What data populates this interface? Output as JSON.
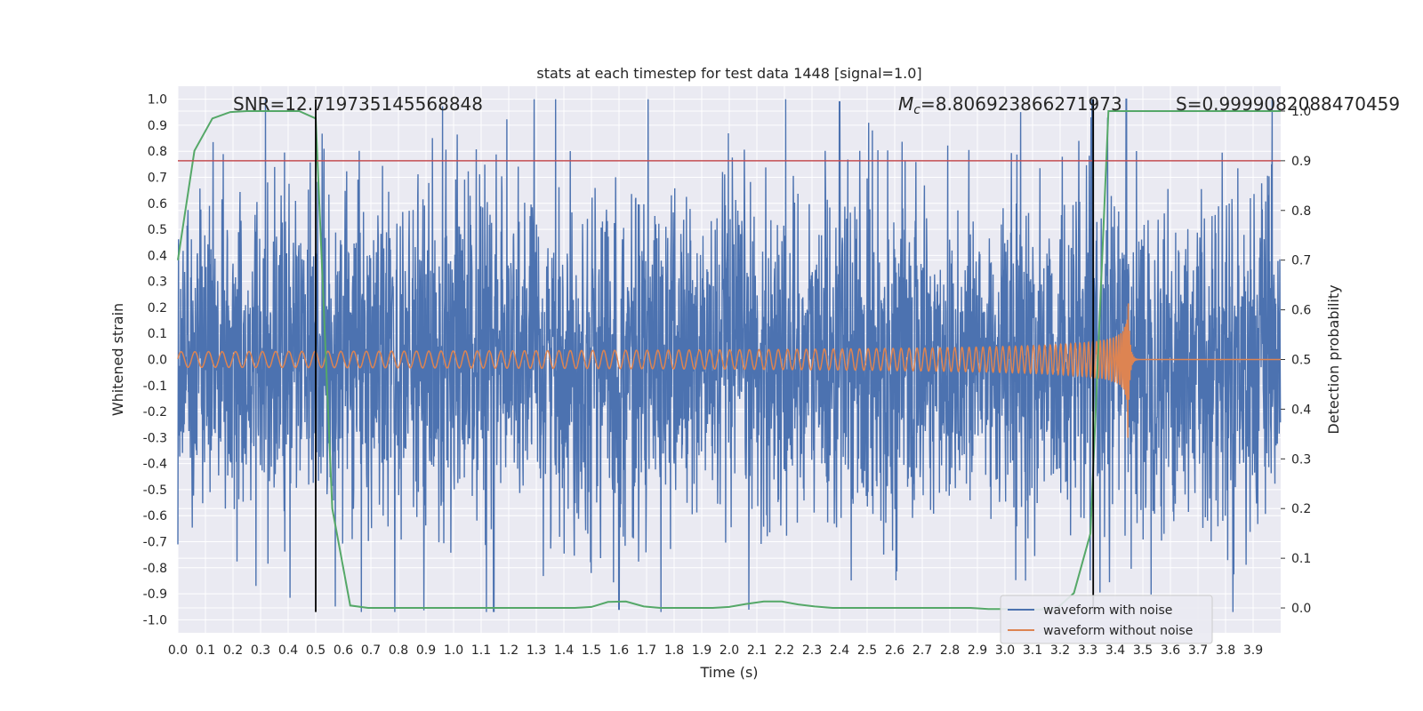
{
  "chart_data": {
    "type": "line",
    "title": "stats at each timestep for test data 1448 [signal=1.0]",
    "xlabel": "Time (s)",
    "ylabel_left": "Whitened strain",
    "ylabel_right": "Detection probability",
    "xlim": [
      0.0,
      4.0
    ],
    "ylim_left": [
      -1.05,
      1.05
    ],
    "ylim_right": [
      -0.05,
      1.05
    ],
    "x_ticks": [
      "0.0",
      "0.1",
      "0.2",
      "0.3",
      "0.4",
      "0.5",
      "0.6",
      "0.7",
      "0.8",
      "0.9",
      "1.0",
      "1.1",
      "1.2",
      "1.3",
      "1.4",
      "1.5",
      "1.6",
      "1.7",
      "1.8",
      "1.9",
      "2.0",
      "2.1",
      "2.2",
      "2.3",
      "2.4",
      "2.5",
      "2.6",
      "2.7",
      "2.8",
      "2.9",
      "3.0",
      "3.1",
      "3.2",
      "3.3",
      "3.4",
      "3.5",
      "3.6",
      "3.7",
      "3.8",
      "3.9"
    ],
    "y_left_ticks": [
      "1.0",
      "0.9",
      "0.8",
      "0.7",
      "0.6",
      "0.5",
      "0.4",
      "0.3",
      "0.2",
      "0.1",
      "0.0",
      "-0.1",
      "-0.2",
      "-0.3",
      "-0.4",
      "-0.5",
      "-0.6",
      "-0.7",
      "-0.8",
      "-0.9",
      "-1.0"
    ],
    "y_right_ticks": [
      "1.0",
      "0.9",
      "0.8",
      "0.7",
      "0.6",
      "0.5",
      "0.4",
      "0.3",
      "0.2",
      "0.1",
      "0.0"
    ],
    "annotations": {
      "snr": "SNR=12.719735145568848",
      "mc_symbol": "M",
      "mc_sub": "c",
      "mc_value": "=8.806923866271973",
      "s": "S=0.9999082088470459"
    },
    "threshold_probability": 0.9,
    "vertical_markers": [
      0.5,
      3.32
    ],
    "legend": [
      "waveform with noise",
      "waveform without noise"
    ],
    "colors": {
      "noisy": "#4c72b0",
      "clean": "#dd8452",
      "probability": "#55a868",
      "threshold": "#c44e52",
      "marker": "#000000",
      "axes_bg": "#eaeaf2",
      "grid": "#ffffff"
    },
    "series": [
      {
        "name": "Detection probability",
        "axis": "right",
        "x": [
          0.0,
          0.06,
          0.125,
          0.19,
          0.25,
          0.31,
          0.375,
          0.44,
          0.5,
          0.56,
          0.625,
          0.69,
          0.75,
          0.81,
          0.875,
          0.94,
          1.0,
          1.06,
          1.125,
          1.19,
          1.25,
          1.31,
          1.375,
          1.44,
          1.5,
          1.56,
          1.625,
          1.69,
          1.75,
          1.81,
          1.875,
          1.94,
          2.0,
          2.06,
          2.125,
          2.19,
          2.25,
          2.31,
          2.375,
          2.44,
          2.5,
          2.56,
          2.625,
          2.69,
          2.75,
          2.81,
          2.875,
          2.94,
          3.0,
          3.06,
          3.125,
          3.19,
          3.25,
          3.31,
          3.375,
          3.44,
          3.5,
          3.56,
          3.625,
          3.69,
          3.75,
          3.81,
          3.875,
          3.94,
          4.0
        ],
        "values": [
          0.7,
          0.92,
          0.985,
          0.998,
          1.0,
          1.0,
          1.0,
          1.0,
          0.985,
          0.2,
          0.005,
          0.0,
          0.0,
          0.0,
          0.0,
          0.0,
          0.0,
          0.0,
          0.0,
          0.0,
          0.0,
          0.0,
          0.0,
          0.0,
          0.002,
          0.012,
          0.013,
          0.003,
          0.0,
          0.0,
          0.0,
          0.0,
          0.002,
          0.008,
          0.013,
          0.013,
          0.007,
          0.003,
          0.0,
          0.0,
          0.0,
          0.0,
          0.0,
          0.0,
          0.0,
          0.0,
          0.0,
          -0.002,
          -0.002,
          -0.003,
          -0.003,
          0.0,
          0.03,
          0.15,
          1.0,
          1.0,
          1.0,
          1.0,
          1.0,
          1.0,
          1.0,
          1.0,
          1.0,
          1.0,
          1.0
        ]
      },
      {
        "name": "waveform with noise",
        "axis": "left",
        "description": "whitened noisy strain, approx Gaussian with std ~0.3, peak excursions ~+-1.0 (max 0.99 near t=2.4, 1.0 near t=3.44, min -0.96 near t=1.6)"
      },
      {
        "name": "waveform without noise",
        "axis": "left",
        "description": "chirp: amplitude ~0.03 at t=0 rising to ~0.34 at merger t~3.44, frequency ~20 Hz rising to ~250 Hz; ringdown to 0 by t~3.48"
      }
    ]
  }
}
